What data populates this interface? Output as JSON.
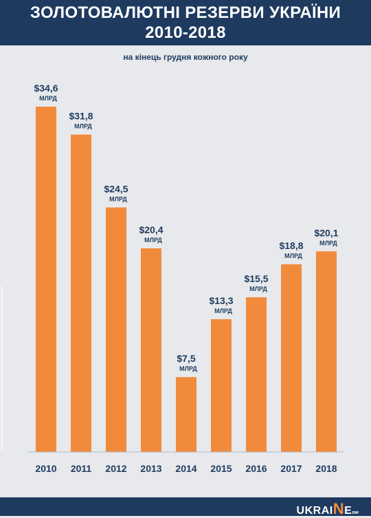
{
  "header": {
    "title_line1": "ЗОЛОТОВАЛЮТНІ РЕЗЕРВИ УКРАЇНИ",
    "title_line2": "2010-2018",
    "subtitle": "на кінець грудня кожного року"
  },
  "colors": {
    "background": "#e7e9ec",
    "header": "#1e3a5f",
    "bar": "#f28a3c",
    "label": "#1e3a5f"
  },
  "logo": {
    "prefix": "UKRAI",
    "accent": "N",
    "suffix": "E",
    "small": "ow"
  },
  "chart_data": {
    "type": "bar",
    "title": "ЗОЛОТОВАЛЮТНІ РЕЗЕРВИ УКРАЇНИ 2010-2018",
    "subtitle": "на кінець грудня кожного року",
    "categories": [
      "2010",
      "2011",
      "2012",
      "2013",
      "2014",
      "2015",
      "2016",
      "2017",
      "2018"
    ],
    "values": [
      34.6,
      31.8,
      24.5,
      20.4,
      7.5,
      13.3,
      15.5,
      18.8,
      20.1
    ],
    "value_labels": [
      "$34,6",
      "$31,8",
      "$24,5",
      "$20,4",
      "$7,5",
      "$13,3",
      "$15,5",
      "$18,8",
      "$20,1"
    ],
    "unit_label": "МЛРД",
    "xlabel": "",
    "ylabel": "",
    "ylim": [
      0,
      34.6
    ],
    "grid": false,
    "legend": "none"
  }
}
